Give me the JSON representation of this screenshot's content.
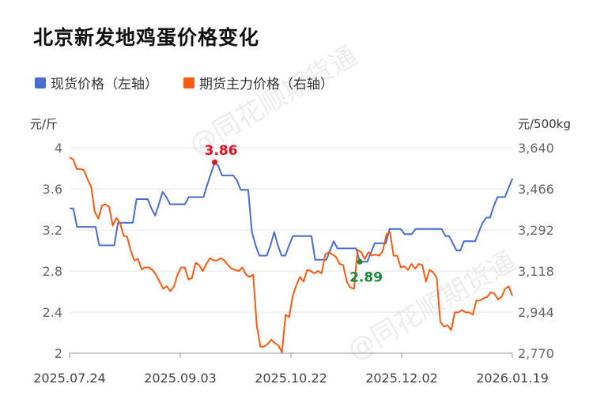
{
  "title": "北京新发地鸡蛋价格变化",
  "legend": {
    "left_series": "现货价格（左轴）",
    "right_series": "期货主力价格（右轴）"
  },
  "units": {
    "left": "元/斤",
    "right": "元/500kg"
  },
  "watermark": "@同花顺期货通",
  "colors": {
    "spot": "#4a6ccf",
    "futures": "#fa5b12",
    "max_label": "#e8101e",
    "min_label": "#1a8a3a"
  },
  "chart_data": {
    "type": "line",
    "x_ticks": [
      "2025.07.24",
      "2025.09.03",
      "2025.10.22",
      "2025.12.02",
      "2026.01.19"
    ],
    "y_left": {
      "ticks": [
        "4",
        "3.6",
        "3.2",
        "2.8",
        "2.4",
        "2"
      ],
      "ylim": [
        2,
        4
      ]
    },
    "y_right": {
      "ticks": [
        "3,640",
        "3,466",
        "3,292",
        "3,118",
        "2,944",
        "2,770"
      ],
      "ylim": [
        2770,
        3640
      ]
    },
    "annotations": {
      "max": "3.86",
      "min": "2.89"
    },
    "series": [
      {
        "name": "现货价格（左轴）",
        "axis": "left",
        "values": [
          3.41,
          3.41,
          3.23,
          3.23,
          3.23,
          3.23,
          3.23,
          3.23,
          3.05,
          3.05,
          3.05,
          3.05,
          3.05,
          3.27,
          3.27,
          3.27,
          3.27,
          3.27,
          3.5,
          3.5,
          3.5,
          3.5,
          3.41,
          3.34,
          3.45,
          3.57,
          3.52,
          3.45,
          3.45,
          3.45,
          3.45,
          3.45,
          3.52,
          3.52,
          3.52,
          3.52,
          3.52,
          3.64,
          3.75,
          3.86,
          3.82,
          3.73,
          3.73,
          3.73,
          3.73,
          3.68,
          3.59,
          3.59,
          3.59,
          3.18,
          3.05,
          2.95,
          2.95,
          2.95,
          3.05,
          3.18,
          3.05,
          2.95,
          2.95,
          3.05,
          3.14,
          3.14,
          3.14,
          3.14,
          3.14,
          3.14,
          2.91,
          2.91,
          2.91,
          2.91,
          3.0,
          3.09,
          3.02,
          3.02,
          3.02,
          3.02,
          3.02,
          3.02,
          2.89,
          2.89,
          2.89,
          2.98,
          3.07,
          3.07,
          3.07,
          3.07,
          3.21,
          3.21,
          3.21,
          3.21,
          3.16,
          3.16,
          3.16,
          3.21,
          3.21,
          3.21,
          3.21,
          3.21,
          3.21,
          3.21,
          3.21,
          3.14,
          3.14,
          3.07,
          3.0,
          3.0,
          3.09,
          3.09,
          3.09,
          3.09,
          3.18,
          3.27,
          3.32,
          3.32,
          3.43,
          3.52,
          3.52,
          3.52,
          3.61,
          3.7
        ]
      },
      {
        "name": "期货主力价格（右轴）",
        "axis": "right",
        "values": [
          3600,
          3590,
          3550,
          3550,
          3545,
          3505,
          3475,
          3368,
          3340,
          3395,
          3400,
          3390,
          3310,
          3343,
          3323,
          3268,
          3263,
          3203,
          3163,
          3170,
          3125,
          3133,
          3133,
          3123,
          3103,
          3073,
          3043,
          3053,
          3033,
          3053,
          3103,
          3133,
          3133,
          3083,
          3088,
          3153,
          3143,
          3118,
          3148,
          3173,
          3163,
          3163,
          3173,
          3163,
          3143,
          3128,
          3123,
          3118,
          3133,
          3103,
          3093,
          3103,
          2888,
          2798,
          2798,
          2808,
          2828,
          2813,
          2803,
          2773,
          2933,
          2923,
          3013,
          3058,
          3093,
          3073,
          3123,
          3118,
          3108,
          3118,
          3108,
          3188,
          3198,
          3188,
          3178,
          3148,
          3143,
          3073,
          3048,
          3043,
          3208,
          3198,
          3168,
          3198,
          3183,
          3188,
          3183,
          3203,
          3273,
          3283,
          3183,
          3183,
          3133,
          3138,
          3123,
          3148,
          3128,
          3148,
          3143,
          3073,
          3123,
          3113,
          3088,
          2903,
          2883,
          2888,
          2868,
          2943,
          2943,
          2953,
          2943,
          2943,
          2933,
          2993,
          2993,
          3003,
          3008,
          3028,
          3023,
          2998,
          3008,
          3043,
          3053,
          3013
        ]
      }
    ]
  }
}
